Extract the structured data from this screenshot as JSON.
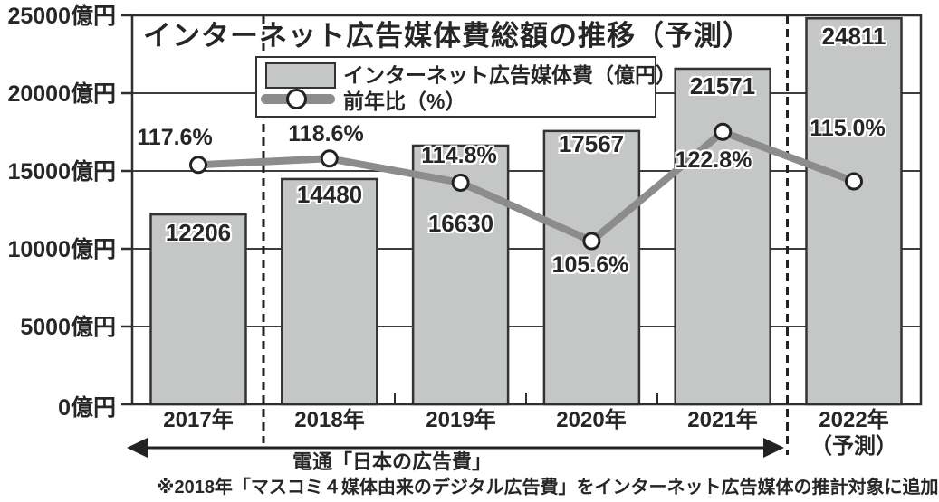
{
  "title": "インターネット広告媒体費総額の推移（予測）",
  "legend": {
    "bar_series_label": "インターネット広告媒体費（億円）",
    "line_series_label": "前年比（%）"
  },
  "y_axis": {
    "tick_labels_top_to_bottom": [
      "25000億円",
      "20000億円",
      "15000億円",
      "10000億円",
      "5000億円",
      "0億円"
    ]
  },
  "chart_data": {
    "type": "bar",
    "subtype": "bar+line combo",
    "title": "インターネット広告媒体費総額の推移（予測）",
    "categories": [
      "2017年",
      "2018年",
      "2019年",
      "2020年",
      "2021年",
      "2022年\n（予測）"
    ],
    "series": [
      {
        "name": "インターネット広告媒体費（億円）",
        "type": "bar",
        "axis": "primary",
        "values": [
          12206,
          14480,
          16630,
          17567,
          21571,
          24811
        ],
        "data_labels": [
          "12206",
          "14480",
          "16630",
          "17567",
          "21571",
          "24811"
        ]
      },
      {
        "name": "前年比（%）",
        "type": "line",
        "axis": "secondary",
        "values": [
          117.6,
          118.6,
          114.8,
          105.6,
          122.8,
          115.0
        ],
        "data_labels": [
          "117.6%",
          "118.6%",
          "114.8%",
          "105.6%",
          "122.8%",
          "115.0%"
        ]
      }
    ],
    "y_axis_ticks": [
      0,
      5000,
      10000,
      15000,
      20000,
      25000
    ],
    "y_axis_unit": "億円",
    "ylim": [
      0,
      25000
    ],
    "grid": "horizontal",
    "legend_position": "top-inside",
    "dashed_separators_after_category_index": [
      0,
      4
    ],
    "forecast_category": "2022年（予測）"
  },
  "annotations": {
    "source_range_label": "電通「日本の広告費」",
    "footnote": "※2018年「マスコミ４媒体由来のデジタル広告費」をインターネット広告媒体の推計対象に追加"
  },
  "colors": {
    "bar_fill": "#c5c6c6",
    "bar_border": "#333333",
    "line": "#8c8c8c",
    "marker_fill": "#ffffff",
    "marker_stroke": "#222222",
    "grid": "#3d3d3d",
    "axis": "#2f2f2f",
    "text": "#262626",
    "background": "#ffffff"
  }
}
